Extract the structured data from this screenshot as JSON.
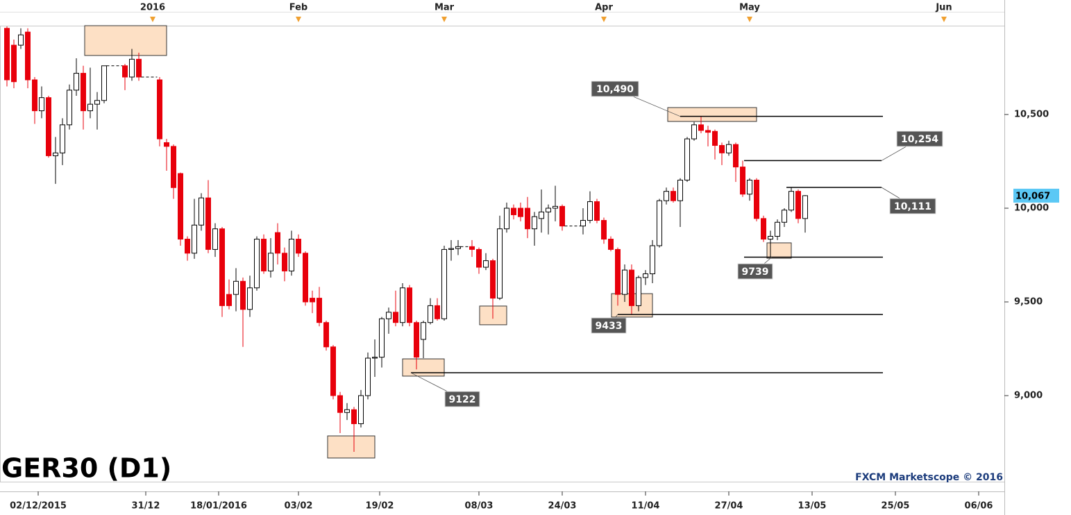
{
  "chart_data": {
    "type": "candlestick",
    "title": "GER30 (D1)",
    "watermark": "FXCM Marketscope © 2016",
    "xlim": [
      -1,
      143.7
    ],
    "ylim": [
      8537,
      10974
    ],
    "grid": false,
    "up_color": "#ffffff",
    "down_color": "#e8000b",
    "yticks": [
      {
        "value": 9000,
        "label": "9,000"
      },
      {
        "value": 9500,
        "label": "9,500"
      },
      {
        "value": 10000,
        "label": "10,000"
      },
      {
        "value": 10500,
        "label": "10,500"
      }
    ],
    "xticks": [
      {
        "value": 4.5,
        "label": "02/12/2015"
      },
      {
        "value": 20,
        "label": "31/12"
      },
      {
        "value": 30.5,
        "label": "18/01/2016"
      },
      {
        "value": 42,
        "label": "03/02"
      },
      {
        "value": 53.7,
        "label": "19/02"
      },
      {
        "value": 68,
        "label": "08/03"
      },
      {
        "value": 80,
        "label": "24/03"
      },
      {
        "value": 92,
        "label": "11/04"
      },
      {
        "value": 104,
        "label": "27/04"
      },
      {
        "value": 116,
        "label": "13/05"
      },
      {
        "value": 128,
        "label": "25/05"
      },
      {
        "value": 140,
        "label": "06/06"
      }
    ],
    "x2ticks": [
      {
        "value": 21,
        "label": "2016"
      },
      {
        "value": 42,
        "label": "Feb"
      },
      {
        "value": 63,
        "label": "Mar"
      },
      {
        "value": 86,
        "label": "Apr"
      },
      {
        "value": 107,
        "label": "May"
      },
      {
        "value": 135,
        "label": "Jun"
      }
    ],
    "current": {
      "value": 10067,
      "label": "10,067",
      "color": "#5bc8f5"
    },
    "series": {
      "x": [
        0,
        1,
        2,
        3,
        4,
        5,
        6,
        7,
        8,
        9,
        10,
        11,
        12,
        13,
        14,
        17,
        18,
        19,
        22,
        23,
        24,
        25,
        26,
        27,
        28,
        29,
        30,
        31,
        32,
        33,
        34,
        35,
        36,
        37,
        38,
        39,
        40,
        41,
        42,
        43,
        44,
        45,
        46,
        47,
        48,
        49,
        50,
        51,
        52,
        53,
        54,
        55,
        56,
        57,
        58,
        59,
        60,
        61,
        62,
        63,
        64,
        65,
        67,
        68,
        69,
        70,
        71,
        72,
        73,
        74,
        75,
        76,
        77,
        78,
        79,
        80,
        83,
        84,
        85,
        86,
        87,
        88,
        89,
        90,
        91,
        92,
        93,
        94,
        95,
        96,
        97,
        98,
        99,
        100,
        101,
        102,
        103,
        104,
        105,
        106,
        107,
        108,
        109,
        110,
        111,
        112,
        113,
        114,
        115
      ],
      "open": [
        10960,
        10870,
        10870,
        10940,
        10685,
        10520,
        10590,
        10280,
        10295,
        10445,
        10630,
        10720,
        10520,
        10555,
        10575,
        10760,
        10700,
        10795,
        10685,
        10350,
        10330,
        10185,
        9835,
        9760,
        9910,
        10055,
        9780,
        9890,
        9540,
        9540,
        9610,
        9460,
        9575,
        9835,
        9665,
        9870,
        9760,
        9665,
        9835,
        9760,
        9520,
        9520,
        9390,
        9260,
        9000,
        8910,
        8925,
        8850,
        9000,
        9200,
        9205,
        9410,
        9445,
        9390,
        9575,
        9390,
        9300,
        9390,
        9480,
        9410,
        9780,
        9785,
        9795,
        9780,
        9685,
        9720,
        9520,
        9890,
        10000,
        10000,
        10000,
        9890,
        9945,
        9980,
        10000,
        10010,
        9905,
        9935,
        10035,
        9935,
        9835,
        9780,
        9540,
        9670,
        9480,
        9630,
        9650,
        9800,
        10040,
        10090,
        10040,
        10150,
        10370,
        10445,
        10415,
        10410,
        10335,
        10295,
        10340,
        10220,
        10075,
        10150,
        9945,
        9835,
        9850,
        9925,
        9990,
        10090,
        9945
      ],
      "high": [
        10970,
        10900,
        10960,
        10960,
        10700,
        10650,
        10600,
        10380,
        10480,
        10660,
        10800,
        10760,
        10750,
        10620,
        10760,
        10770,
        10850,
        10830,
        10700,
        10370,
        10340,
        10190,
        9850,
        10050,
        10080,
        10150,
        9920,
        9900,
        9620,
        9680,
        9630,
        9640,
        9850,
        9860,
        9840,
        9920,
        9790,
        9880,
        9860,
        9770,
        9560,
        9580,
        9400,
        9270,
        9020,
        8960,
        8940,
        9030,
        9230,
        9300,
        9420,
        9470,
        9560,
        9600,
        9590,
        9400,
        9400,
        9520,
        9520,
        9800,
        9830,
        9830,
        9830,
        9790,
        9760,
        9730,
        9960,
        10030,
        10020,
        10030,
        10060,
        9980,
        10100,
        10020,
        10120,
        10020,
        10000,
        10090,
        10050,
        9950,
        9850,
        9790,
        9700,
        9700,
        9640,
        9670,
        9830,
        10050,
        10110,
        10110,
        10160,
        10380,
        10460,
        10490,
        10440,
        10420,
        10350,
        10360,
        10350,
        10254,
        10160,
        10160,
        9960,
        9880,
        9940,
        10000,
        10111,
        10100,
        10070
      ],
      "low": [
        10650,
        10640,
        10850,
        10640,
        10450,
        10480,
        10270,
        10130,
        10230,
        10420,
        10600,
        10420,
        10480,
        10420,
        10560,
        10630,
        10680,
        10680,
        10330,
        10200,
        10050,
        9800,
        9720,
        9730,
        9880,
        9760,
        9740,
        9420,
        9460,
        9450,
        9260,
        9420,
        9560,
        9650,
        9630,
        9700,
        9610,
        9640,
        9740,
        9480,
        9440,
        9370,
        9240,
        8980,
        8800,
        8870,
        8700,
        8830,
        8980,
        9100,
        9150,
        9330,
        9370,
        9370,
        9370,
        9140,
        9200,
        9380,
        9400,
        9400,
        9720,
        9750,
        9740,
        9650,
        9670,
        9410,
        9510,
        9870,
        9940,
        9930,
        9840,
        9800,
        9870,
        9860,
        9930,
        9880,
        9860,
        9920,
        9920,
        9810,
        9770,
        9480,
        9500,
        9433,
        9450,
        9590,
        9600,
        9790,
        10020,
        10030,
        9900,
        10140,
        10360,
        10400,
        10330,
        10260,
        10230,
        10280,
        10140,
        10060,
        10040,
        9930,
        9820,
        9739,
        9830,
        9900,
        9980,
        9920,
        9870
      ],
      "close": [
        10685,
        10675,
        10925,
        10685,
        10520,
        10590,
        10280,
        10295,
        10445,
        10630,
        10720,
        10520,
        10555,
        10575,
        10760,
        10700,
        10795,
        10700,
        10370,
        10330,
        10110,
        9835,
        9760,
        9910,
        10055,
        9780,
        9890,
        9480,
        9480,
        9610,
        9460,
        9575,
        9835,
        9665,
        9760,
        9760,
        9665,
        9835,
        9760,
        9500,
        9500,
        9390,
        9260,
        9000,
        8910,
        8925,
        8850,
        9000,
        9200,
        9205,
        9410,
        9445,
        9390,
        9575,
        9390,
        9205,
        9390,
        9480,
        9410,
        9780,
        9785,
        9795,
        9780,
        9685,
        9720,
        9520,
        9890,
        10000,
        9965,
        9955,
        9890,
        9955,
        9980,
        10000,
        10010,
        9905,
        9935,
        10035,
        9935,
        9835,
        9780,
        9540,
        9670,
        9480,
        9630,
        9650,
        9800,
        10040,
        10090,
        10040,
        10150,
        10370,
        10445,
        10415,
        10405,
        10335,
        10295,
        10340,
        10220,
        10075,
        10150,
        9945,
        9835,
        9850,
        9925,
        9990,
        10090,
        9945,
        10067
      ]
    },
    "levels": [
      {
        "value": 10490,
        "label": "10,490",
        "x": [
          97,
          126.2
        ]
      },
      {
        "value": 10254,
        "label": "10,254",
        "x": [
          106.2,
          126
        ]
      },
      {
        "value": 10111,
        "label": "10,111",
        "x": [
          112.3,
          126
        ]
      },
      {
        "value": 9739,
        "label": "9739",
        "x": [
          106.2,
          126.2
        ]
      },
      {
        "value": 9433,
        "label": "9433",
        "x": [
          88,
          126.2
        ]
      },
      {
        "value": 9122,
        "label": "9122",
        "x": [
          58.2,
          126.2
        ]
      }
    ],
    "highlights": [
      {
        "x": [
          11.2,
          23
        ],
        "y": [
          10815,
          10974
        ]
      },
      {
        "x": [
          46.2,
          53
        ],
        "y": [
          8667,
          8785
        ]
      },
      {
        "x": [
          57,
          63
        ],
        "y": [
          9104,
          9196
        ]
      },
      {
        "x": [
          68.1,
          72
        ],
        "y": [
          9378,
          9478
        ]
      },
      {
        "x": [
          87.1,
          93
        ],
        "y": [
          9419,
          9544
        ]
      },
      {
        "x": [
          95.2,
          108
        ],
        "y": [
          10463,
          10537
        ]
      },
      {
        "x": [
          109.5,
          113
        ],
        "y": [
          9733,
          9815
        ]
      }
    ],
    "highlight_color": "#fde0c5"
  }
}
